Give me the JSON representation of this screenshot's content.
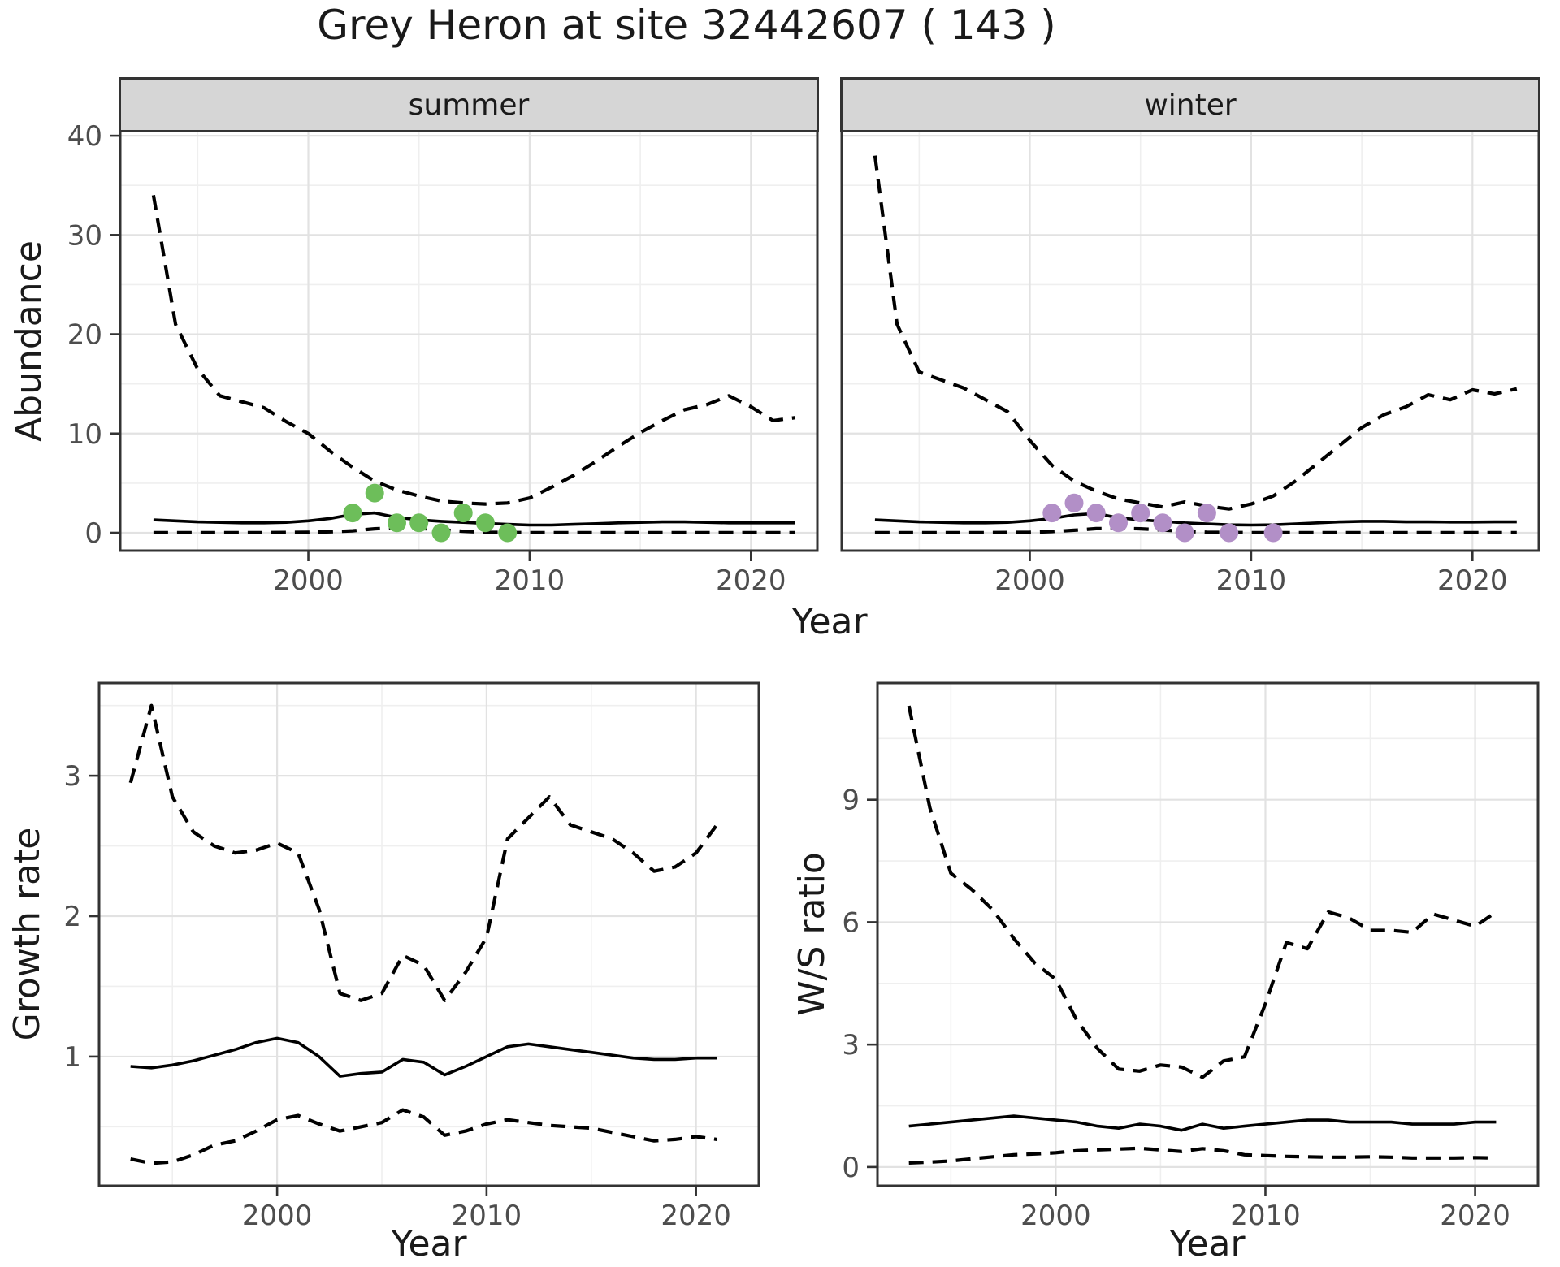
{
  "title": "Grey Heron at site 32442607 ( 143 )",
  "facets": [
    {
      "label": "summer"
    },
    {
      "label": "winter"
    }
  ],
  "axis_titles": {
    "abundance_y": "Abundance",
    "top_x": "Year",
    "growth_y": "Growth rate",
    "growth_x": "Year",
    "ws_y": "W/S ratio",
    "ws_x": "Year"
  },
  "colors": {
    "summer_points": "#6dbe5a",
    "winter_points": "#b28fc7",
    "line": "#000000",
    "strip_bg": "#d6d6d6",
    "panel_border": "#333333",
    "grid_major": "#e2e2e2",
    "grid_minor": "#efefef",
    "tick_label": "#4d4d4d"
  },
  "chart_data": [
    {
      "type": "line",
      "name": "abundance-summer",
      "facet_label": "summer",
      "title": "Grey Heron at site 32442607 ( 143 )",
      "xlabel": "Year",
      "ylabel": "Abundance",
      "xlim": [
        1991.5,
        2023
      ],
      "ylim": [
        -1.8,
        40.5
      ],
      "grid": true,
      "legend": "none",
      "xticks": {
        "values": [
          2000,
          2010,
          2020
        ],
        "labels": [
          "2000",
          "2010",
          "2020"
        ]
      },
      "yticks": {
        "values": [
          0,
          10,
          20,
          30,
          40
        ],
        "labels": [
          "0",
          "10",
          "20",
          "30",
          "40"
        ]
      },
      "xminor": [
        1995,
        2005,
        2015
      ],
      "yminor": [
        5,
        15,
        25,
        35
      ],
      "x": [
        1993,
        1994,
        1995,
        1996,
        1997,
        1998,
        1999,
        2000,
        2001,
        2002,
        2003,
        2004,
        2005,
        2006,
        2007,
        2008,
        2009,
        2010,
        2011,
        2012,
        2013,
        2014,
        2015,
        2016,
        2017,
        2018,
        2019,
        2020,
        2021,
        2022
      ],
      "series": [
        {
          "name": "upper-ci",
          "style": "dashed",
          "values": [
            34,
            21,
            16.5,
            13.8,
            13.2,
            12.6,
            11.2,
            10,
            8.2,
            6.6,
            5.2,
            4.3,
            3.7,
            3.2,
            3,
            2.9,
            3,
            3.5,
            4.6,
            5.8,
            7.2,
            8.7,
            10.1,
            11.3,
            12.4,
            12.9,
            13.8,
            12.7,
            11.3,
            11.6
          ]
        },
        {
          "name": "median",
          "style": "solid",
          "values": [
            1.3,
            1.2,
            1.1,
            1.05,
            1,
            1,
            1.05,
            1.2,
            1.45,
            1.85,
            2,
            1.55,
            1.3,
            1.15,
            1.05,
            0.95,
            0.85,
            0.78,
            0.78,
            0.85,
            0.92,
            1,
            1.05,
            1.1,
            1.1,
            1.05,
            1,
            1,
            1,
            1
          ]
        },
        {
          "name": "lower-ci",
          "style": "dashed",
          "values": [
            0.02,
            0.02,
            0.02,
            0.02,
            0.02,
            0.02,
            0.03,
            0.05,
            0.1,
            0.2,
            0.4,
            0.5,
            0.45,
            0.3,
            0.15,
            0.05,
            0.03,
            0.02,
            0.02,
            0.02,
            0.02,
            0.02,
            0.02,
            0.02,
            0.02,
            0.02,
            0.02,
            0.02,
            0.02,
            0.02
          ]
        }
      ],
      "points": {
        "name": "observed-counts-summer",
        "color": "#6dbe5a",
        "x": [
          2002,
          2003,
          2004,
          2005,
          2006,
          2007,
          2008,
          2009
        ],
        "y": [
          2,
          4,
          1,
          1,
          0,
          2,
          1,
          0
        ]
      }
    },
    {
      "type": "line",
      "name": "abundance-winter",
      "facet_label": "winter",
      "xlabel": "Year",
      "ylabel": "Abundance",
      "xlim": [
        1991.5,
        2023
      ],
      "ylim": [
        -1.8,
        40.5
      ],
      "grid": true,
      "legend": "none",
      "xticks": {
        "values": [
          2000,
          2010,
          2020
        ],
        "labels": [
          "2000",
          "2010",
          "2020"
        ]
      },
      "yticks": {
        "values": [
          0,
          10,
          20,
          30,
          40
        ],
        "labels": [
          "0",
          "10",
          "20",
          "30",
          "40"
        ]
      },
      "xminor": [
        1995,
        2005,
        2015
      ],
      "yminor": [
        5,
        15,
        25,
        35
      ],
      "x": [
        1993,
        1994,
        1995,
        1996,
        1997,
        1998,
        1999,
        2000,
        2001,
        2002,
        2003,
        2004,
        2005,
        2006,
        2007,
        2008,
        2009,
        2010,
        2011,
        2012,
        2013,
        2014,
        2015,
        2016,
        2017,
        2018,
        2019,
        2020,
        2021,
        2022
      ],
      "series": [
        {
          "name": "upper-ci",
          "style": "dashed",
          "values": [
            38,
            21,
            16.2,
            15.4,
            14.6,
            13.4,
            12.2,
            9.3,
            6.8,
            5.2,
            4.2,
            3.4,
            3,
            2.6,
            3.1,
            2.7,
            2.4,
            2.9,
            3.7,
            5.2,
            7,
            8.8,
            10.6,
            11.9,
            12.7,
            13.9,
            13.4,
            14.4,
            14,
            14.5
          ]
        },
        {
          "name": "median",
          "style": "solid",
          "values": [
            1.3,
            1.2,
            1.1,
            1.05,
            1,
            1,
            1.05,
            1.2,
            1.45,
            1.8,
            1.95,
            1.5,
            1.3,
            1.15,
            1,
            0.9,
            0.8,
            0.78,
            0.8,
            0.9,
            1,
            1.1,
            1.15,
            1.15,
            1.1,
            1.1,
            1.08,
            1.08,
            1.1,
            1.1
          ]
        },
        {
          "name": "lower-ci",
          "style": "dashed",
          "values": [
            0.02,
            0.02,
            0.02,
            0.02,
            0.02,
            0.02,
            0.03,
            0.05,
            0.12,
            0.25,
            0.42,
            0.45,
            0.4,
            0.28,
            0.15,
            0.06,
            0.03,
            0.02,
            0.02,
            0.02,
            0.02,
            0.02,
            0.02,
            0.02,
            0.02,
            0.02,
            0.02,
            0.02,
            0.02,
            0.02
          ]
        }
      ],
      "points": {
        "name": "observed-counts-winter",
        "color": "#b28fc7",
        "x": [
          2001,
          2002,
          2003,
          2004,
          2005,
          2006,
          2007,
          2008,
          2009,
          2011
        ],
        "y": [
          2,
          3,
          2,
          1,
          2,
          1,
          0,
          2,
          0,
          0
        ]
      }
    },
    {
      "type": "line",
      "name": "growth-rate",
      "xlabel": "Year",
      "ylabel": "Growth rate",
      "xlim": [
        1991.5,
        2023
      ],
      "ylim": [
        0.08,
        3.66
      ],
      "grid": true,
      "legend": "none",
      "xticks": {
        "values": [
          2000,
          2010,
          2020
        ],
        "labels": [
          "2000",
          "2010",
          "2020"
        ]
      },
      "yticks": {
        "values": [
          1,
          2,
          3
        ],
        "labels": [
          "1",
          "2",
          "3"
        ]
      },
      "xminor": [
        1995,
        2005,
        2015
      ],
      "yminor": [
        0.5,
        1.5,
        2.5,
        3.5
      ],
      "x": [
        1993,
        1994,
        1995,
        1996,
        1997,
        1998,
        1999,
        2000,
        2001,
        2002,
        2003,
        2004,
        2005,
        2006,
        2007,
        2008,
        2009,
        2010,
        2011,
        2012,
        2013,
        2014,
        2015,
        2016,
        2017,
        2018,
        2019,
        2020,
        2021
      ],
      "series": [
        {
          "name": "upper-ci",
          "style": "dashed",
          "values": [
            2.95,
            3.5,
            2.85,
            2.6,
            2.5,
            2.45,
            2.47,
            2.52,
            2.45,
            2.05,
            1.45,
            1.4,
            1.45,
            1.72,
            1.65,
            1.4,
            1.6,
            1.85,
            2.55,
            2.7,
            2.85,
            2.65,
            2.6,
            2.55,
            2.45,
            2.32,
            2.35,
            2.45,
            2.65
          ]
        },
        {
          "name": "median",
          "style": "solid",
          "values": [
            0.93,
            0.92,
            0.94,
            0.97,
            1.01,
            1.05,
            1.1,
            1.13,
            1.1,
            1,
            0.86,
            0.88,
            0.89,
            0.98,
            0.96,
            0.87,
            0.93,
            1,
            1.07,
            1.09,
            1.07,
            1.05,
            1.03,
            1.01,
            0.99,
            0.98,
            0.98,
            0.99,
            0.99
          ]
        },
        {
          "name": "lower-ci",
          "style": "dashed",
          "values": [
            0.27,
            0.24,
            0.25,
            0.3,
            0.37,
            0.4,
            0.47,
            0.55,
            0.58,
            0.52,
            0.47,
            0.5,
            0.53,
            0.62,
            0.57,
            0.44,
            0.47,
            0.52,
            0.55,
            0.53,
            0.51,
            0.5,
            0.49,
            0.46,
            0.43,
            0.4,
            0.41,
            0.43,
            0.41
          ]
        }
      ]
    },
    {
      "type": "line",
      "name": "ws-ratio",
      "xlabel": "Year",
      "ylabel": "W/S ratio",
      "xlim": [
        1991.5,
        2023
      ],
      "ylim": [
        -0.46,
        11.86
      ],
      "grid": true,
      "legend": "none",
      "xticks": {
        "values": [
          2000,
          2010,
          2020
        ],
        "labels": [
          "2000",
          "2010",
          "2020"
        ]
      },
      "yticks": {
        "values": [
          0,
          3,
          6,
          9
        ],
        "labels": [
          "0",
          "3",
          "6",
          "9"
        ]
      },
      "xminor": [
        1995,
        2005,
        2015
      ],
      "yminor": [
        1.5,
        4.5,
        7.5,
        10.5
      ],
      "x": [
        1993,
        1994,
        1995,
        1996,
        1997,
        1998,
        1999,
        2000,
        2001,
        2002,
        2003,
        2004,
        2005,
        2006,
        2007,
        2008,
        2009,
        2010,
        2011,
        2012,
        2013,
        2014,
        2015,
        2016,
        2017,
        2018,
        2019,
        2020,
        2021
      ],
      "series": [
        {
          "name": "upper-ci",
          "style": "dashed",
          "values": [
            11.3,
            8.8,
            7.2,
            6.8,
            6.3,
            5.6,
            5,
            4.6,
            3.6,
            2.9,
            2.4,
            2.35,
            2.5,
            2.45,
            2.2,
            2.6,
            2.7,
            4,
            5.5,
            5.35,
            6.25,
            6.1,
            5.8,
            5.8,
            5.75,
            6.2,
            6.05,
            5.9,
            6.25
          ]
        },
        {
          "name": "median",
          "style": "solid",
          "values": [
            1,
            1.05,
            1.1,
            1.15,
            1.2,
            1.25,
            1.2,
            1.15,
            1.1,
            1,
            0.95,
            1.05,
            1,
            0.9,
            1.05,
            0.95,
            1,
            1.05,
            1.1,
            1.15,
            1.15,
            1.1,
            1.1,
            1.1,
            1.05,
            1.05,
            1.05,
            1.1,
            1.1
          ]
        },
        {
          "name": "lower-ci",
          "style": "dashed",
          "values": [
            0.1,
            0.12,
            0.15,
            0.2,
            0.25,
            0.3,
            0.32,
            0.35,
            0.4,
            0.42,
            0.44,
            0.46,
            0.42,
            0.38,
            0.45,
            0.4,
            0.3,
            0.28,
            0.26,
            0.25,
            0.24,
            0.24,
            0.25,
            0.24,
            0.22,
            0.22,
            0.22,
            0.23,
            0.22
          ]
        }
      ]
    }
  ]
}
